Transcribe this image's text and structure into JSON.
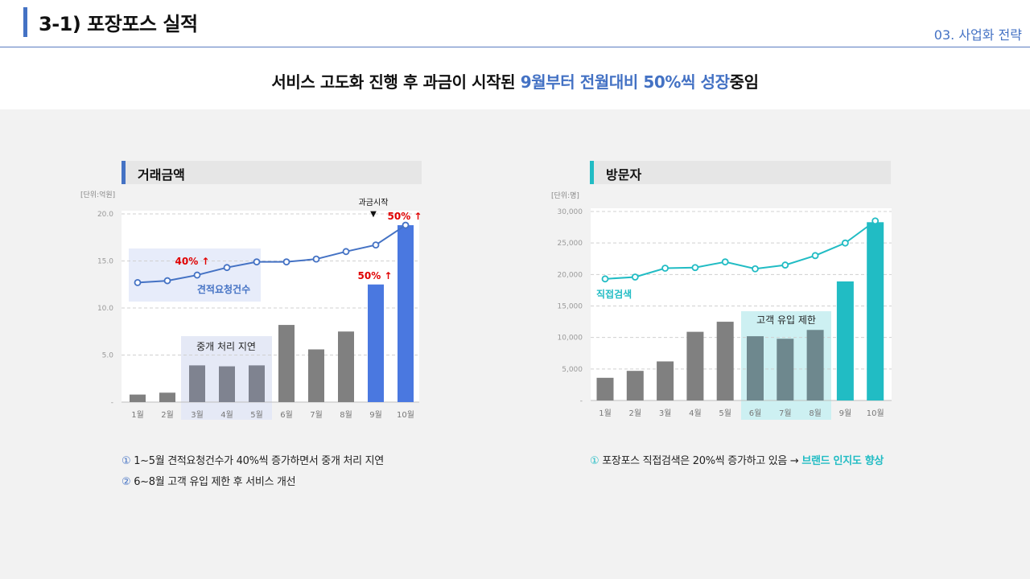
{
  "header": {
    "title": "3-1) 포장포스 실적",
    "section": "03. 사업화 전략"
  },
  "subtitle": {
    "part1": "서비스 고도화 진행  후 과금이 시작된 ",
    "highlight": "9월부터 전월대비 50%씩 성장",
    "part2": "중임"
  },
  "colors": {
    "blue": "#4472c4",
    "bar_blue": "#4a78e0",
    "teal": "#21bcc4",
    "gray_bar": "#808080"
  },
  "chart_data": [
    {
      "type": "bar",
      "title": "거래금액",
      "unit_label": "[단위:억원]",
      "categories": [
        "1월",
        "2월",
        "3월",
        "4월",
        "5월",
        "6월",
        "7월",
        "8월",
        "9월",
        "10월"
      ],
      "yticks": [
        "20.0",
        "15.0",
        "10.0",
        "5.0",
        "-"
      ],
      "ylim": [
        0,
        20
      ],
      "values": [
        0.8,
        1.0,
        3.9,
        3.8,
        3.9,
        8.2,
        5.6,
        7.5,
        12.5,
        18.8
      ],
      "line_series": {
        "name": "견적요청건수",
        "values": [
          12.7,
          12.9,
          13.5,
          14.3,
          14.9,
          14.9,
          15.2,
          16.0,
          16.7,
          18.8
        ]
      },
      "annotations": {
        "growth1": "40% ↑",
        "growth2": "50% ↑",
        "growth3": "50% ↑",
        "billing": "과금시작",
        "billing_marker": "▼",
        "delay_box": "중개 처리 지연"
      },
      "grid": true
    },
    {
      "type": "bar",
      "title": "방문자",
      "unit_label": "[단위:명]",
      "categories": [
        "1월",
        "2월",
        "3월",
        "4월",
        "5월",
        "6월",
        "7월",
        "8월",
        "9월",
        "10월"
      ],
      "yticks": [
        "30,000",
        "25,000",
        "20,000",
        "15,000",
        "10,000",
        "5,000",
        "-"
      ],
      "ylim": [
        0,
        30000
      ],
      "values": [
        3600,
        4700,
        6200,
        10900,
        12500,
        10200,
        9800,
        11200,
        18900,
        28300
      ],
      "line_series": {
        "name": "직접검색",
        "values": [
          19300,
          19600,
          21000,
          21100,
          22000,
          20900,
          21500,
          23000,
          25000,
          28500
        ]
      },
      "annotations": {
        "limit_box": "고객 유입 제한"
      },
      "grid": true
    }
  ],
  "notes": {
    "left1_num": "①",
    "left1_text": " 1~5월 견적요청건수가 40%씩 증가하면서 중개 처리 지연",
    "left2_num": "②",
    "left2_text": " 6~8월 고객 유입 제한 후 서비스 개선",
    "right1_num": "①",
    "right1_text": " 포장포스 직접검색은  20%씩 증가하고 있음 → ",
    "right1_brand": "브랜드 인지도 향상"
  }
}
